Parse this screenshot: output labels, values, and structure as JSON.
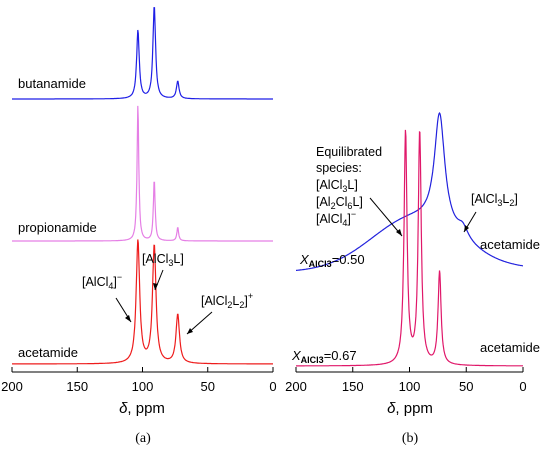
{
  "chart_data": [
    {
      "panel": "(a)",
      "type": "line",
      "xlabel_prefix": "δ",
      "xlabel_unit": ", ppm",
      "xlim": [
        200,
        0
      ],
      "xaxis_reversed": true,
      "xticks": [
        200,
        150,
        100,
        50,
        0
      ],
      "grid": false,
      "series": [
        {
          "name": "butanamide",
          "color": "#1f1fe6",
          "peaks": [
            {
              "ppm": 103.5,
              "rel_height": 0.7
            },
            {
              "ppm": 91.0,
              "rel_height": 0.95
            },
            {
              "ppm": 73.0,
              "rel_height": 0.18
            }
          ]
        },
        {
          "name": "propionamide",
          "color": "#e57fe5",
          "peaks": [
            {
              "ppm": 103.5,
              "rel_height": 1.0
            },
            {
              "ppm": 91.0,
              "rel_height": 0.45
            },
            {
              "ppm": 73.0,
              "rel_height": 0.1
            }
          ]
        },
        {
          "name": "acetamide",
          "color": "#ee1c1c",
          "peaks": [
            {
              "ppm": 103.5,
              "rel_height": 1.0
            },
            {
              "ppm": 91.0,
              "rel_height": 0.96
            },
            {
              "ppm": 73.0,
              "rel_height": 0.4
            }
          ]
        }
      ],
      "annotations": [
        {
          "text_main": "[AlCl",
          "sub": "4",
          "text_end": "]",
          "sup": "−",
          "points_to_ppm": 103.5
        },
        {
          "text_main": "[AlCl",
          "sub": "3",
          "text_end": "L]",
          "sup": "",
          "points_to_ppm": 91.0
        },
        {
          "text_main": "[AlCl",
          "sub": "2",
          "text_mid": "L",
          "sub2": "2",
          "text_end": "]",
          "sup": "+",
          "points_to_ppm": 73.0
        }
      ]
    },
    {
      "panel": "(b)",
      "type": "line",
      "xlabel_prefix": "δ",
      "xlabel_unit": ", ppm",
      "xlim": [
        200,
        0
      ],
      "xaxis_reversed": true,
      "xticks": [
        200,
        150,
        100,
        50,
        0
      ],
      "grid": false,
      "series": [
        {
          "name": "acetamide",
          "x_label_main": "X",
          "x_label_sub": "AlCl3",
          "x_label_value": "=0.50",
          "color": "#2222dd",
          "peaks": [
            {
              "ppm": 73.5,
              "rel_height": 0.8
            },
            {
              "ppm": 53.0,
              "rel_height": 0.08
            }
          ]
        },
        {
          "name": "acetamide",
          "x_label_main": "X",
          "x_label_sub": "AlCl3",
          "x_label_value": "=0.67",
          "color": "#e0186a",
          "peaks": [
            {
              "ppm": 103.5,
              "rel_height": 1.0
            },
            {
              "ppm": 91.0,
              "rel_height": 1.0
            },
            {
              "ppm": 73.5,
              "rel_height": 0.4
            }
          ]
        }
      ],
      "annotations": [
        {
          "lines": [
            "Equilibrated",
            "species:"
          ],
          "formulas": [
            {
              "main": "[AlCl",
              "sub": "3",
              "end": "L]",
              "sup": ""
            },
            {
              "main": "[Al",
              "sub": "2",
              "mid": "Cl",
              "sub2": "6",
              "end": "L]",
              "sup": ""
            },
            {
              "main": "[AlCl",
              "sub": "4",
              "end": "]",
              "sup": "−"
            }
          ]
        },
        {
          "main": "[AlCl",
          "sub": "3",
          "mid": "L",
          "sub2": "2",
          "end": "]",
          "points_to_ppm": 53.0
        }
      ]
    }
  ]
}
